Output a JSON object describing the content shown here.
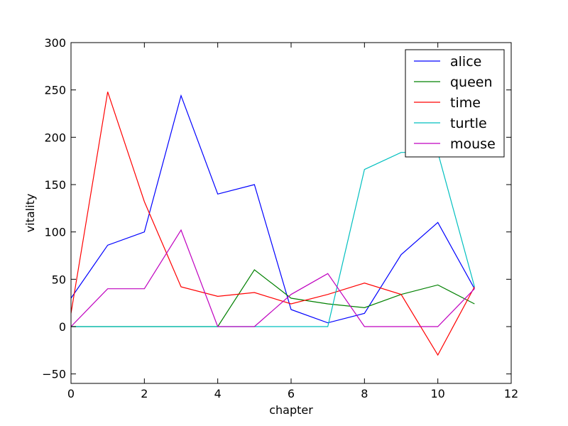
{
  "chart_data": {
    "type": "line",
    "title": "",
    "xlabel": "chapter",
    "ylabel": "vitality",
    "xlim": [
      0,
      12
    ],
    "ylim": [
      -60,
      300
    ],
    "xticks": [
      0,
      2,
      4,
      6,
      8,
      10,
      12
    ],
    "yticks": [
      -50,
      0,
      50,
      100,
      150,
      200,
      250,
      300
    ],
    "ytick_labels": [
      "−50",
      "0",
      "50",
      "100",
      "150",
      "200",
      "250",
      "300"
    ],
    "grid": false,
    "legend_position": "top-right",
    "x": [
      0,
      1,
      2,
      3,
      4,
      5,
      6,
      7,
      8,
      9,
      10,
      11
    ],
    "series": [
      {
        "name": "alice",
        "color": "#0000ff",
        "values": [
          30,
          86,
          100,
          244,
          140,
          150,
          18,
          4,
          14,
          76,
          110,
          40
        ]
      },
      {
        "name": "queen",
        "color": "#008000",
        "values": [
          0,
          0,
          0,
          0,
          0,
          60,
          30,
          24,
          20,
          34,
          44,
          24
        ]
      },
      {
        "name": "time",
        "color": "#ff0000",
        "values": [
          14,
          248,
          132,
          42,
          32,
          36,
          24,
          34,
          46,
          34,
          -30,
          42
        ]
      },
      {
        "name": "turtle",
        "color": "#00bfbf",
        "values": [
          0,
          0,
          0,
          0,
          0,
          0,
          0,
          0,
          166,
          184,
          184,
          42
        ]
      },
      {
        "name": "mouse",
        "color": "#bf00bf",
        "values": [
          0,
          40,
          40,
          102,
          0,
          0,
          34,
          56,
          0,
          0,
          0,
          40
        ]
      }
    ]
  }
}
